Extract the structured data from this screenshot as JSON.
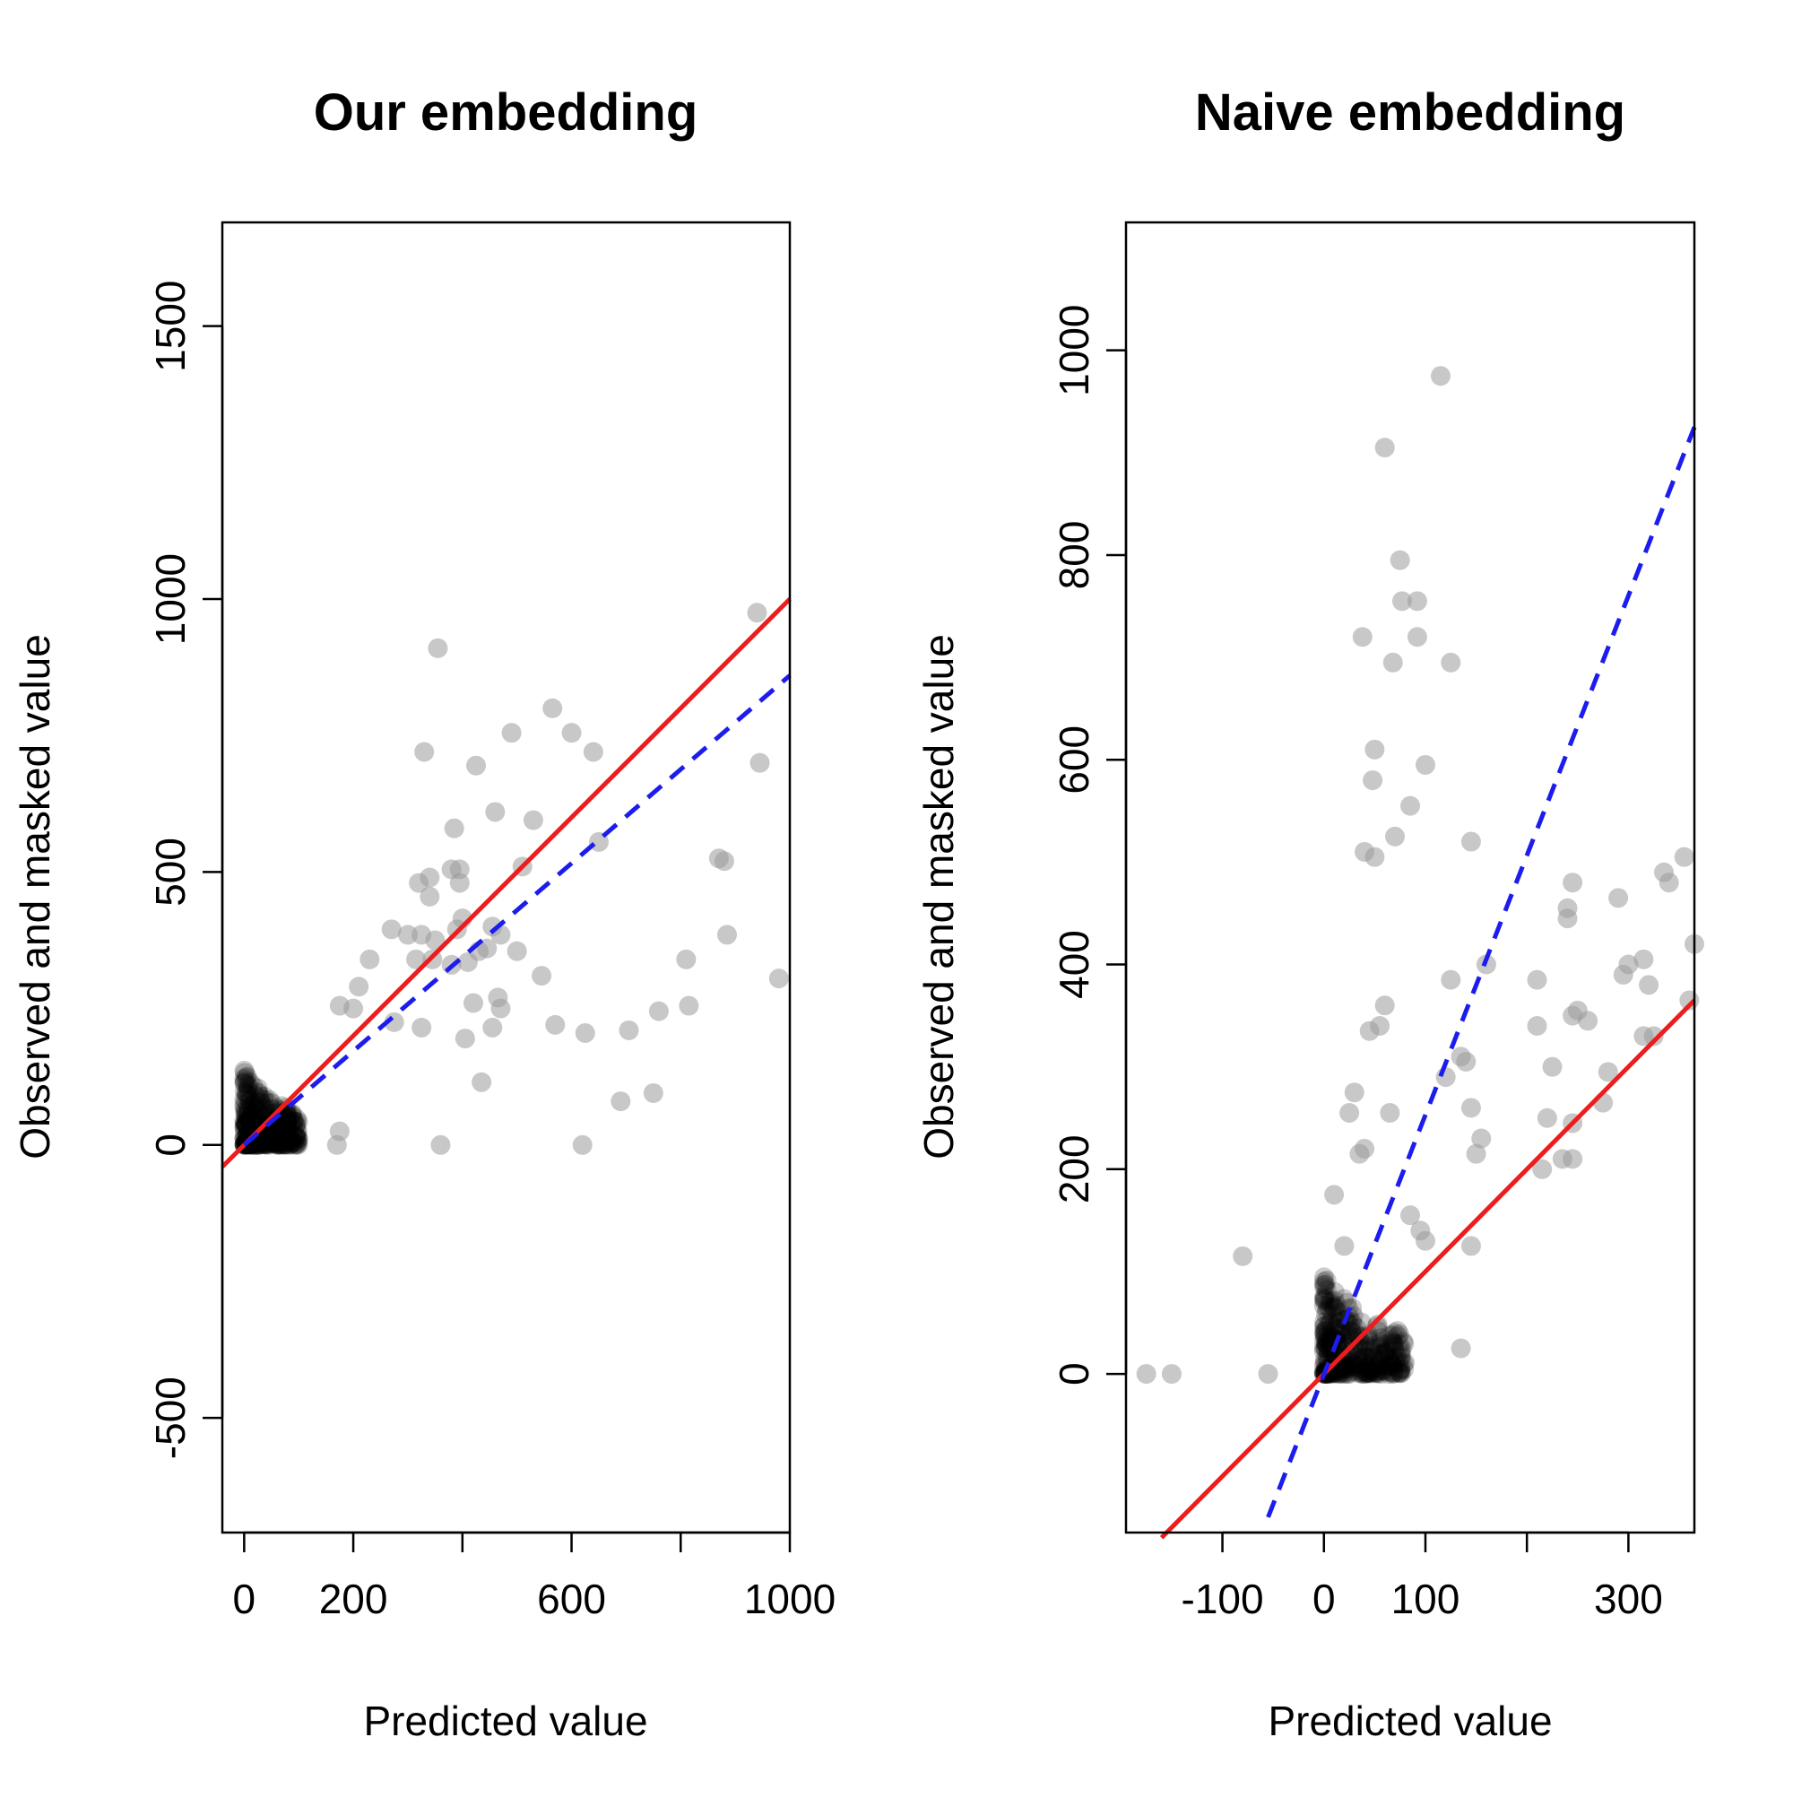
{
  "chart_data": [
    {
      "type": "scatter",
      "title": "Our embedding",
      "xlabel": "Predicted value",
      "ylabel": "Observed and masked value",
      "xlim": [
        -40,
        1000
      ],
      "ylim": [
        -710,
        1690
      ],
      "x_ticks": [
        0,
        200,
        400,
        600,
        800,
        1000
      ],
      "x_tick_labels": [
        "0",
        "200",
        "",
        "600",
        "",
        "1000"
      ],
      "y_ticks": [
        -500,
        0,
        500,
        1000,
        1500
      ],
      "y_tick_labels": [
        "-500",
        "0",
        "500",
        "1000",
        "1500"
      ],
      "point_color": "#9a9a9a",
      "cluster": {
        "x_range": [
          0,
          100
        ],
        "y_range": [
          0,
          140
        ],
        "count": 320
      },
      "points": [
        [
          940,
          975
        ],
        [
          355,
          910
        ],
        [
          565,
          800
        ],
        [
          490,
          755
        ],
        [
          600,
          755
        ],
        [
          640,
          720
        ],
        [
          330,
          720
        ],
        [
          425,
          695
        ],
        [
          945,
          700
        ],
        [
          385,
          580
        ],
        [
          460,
          610
        ],
        [
          530,
          595
        ],
        [
          650,
          555
        ],
        [
          380,
          505
        ],
        [
          395,
          505
        ],
        [
          395,
          480
        ],
        [
          510,
          510
        ],
        [
          340,
          490
        ],
        [
          320,
          480
        ],
        [
          340,
          455
        ],
        [
          870,
          525
        ],
        [
          880,
          520
        ],
        [
          400,
          415
        ],
        [
          455,
          400
        ],
        [
          445,
          360
        ],
        [
          430,
          355
        ],
        [
          390,
          395
        ],
        [
          270,
          395
        ],
        [
          300,
          385
        ],
        [
          325,
          385
        ],
        [
          350,
          375
        ],
        [
          470,
          385
        ],
        [
          380,
          330
        ],
        [
          410,
          335
        ],
        [
          345,
          340
        ],
        [
          500,
          355
        ],
        [
          315,
          340
        ],
        [
          885,
          385
        ],
        [
          810,
          340
        ],
        [
          230,
          340
        ],
        [
          210,
          290
        ],
        [
          465,
          270
        ],
        [
          470,
          250
        ],
        [
          420,
          260
        ],
        [
          175,
          255
        ],
        [
          200,
          250
        ],
        [
          545,
          310
        ],
        [
          275,
          225
        ],
        [
          325,
          215
        ],
        [
          455,
          215
        ],
        [
          570,
          220
        ],
        [
          625,
          205
        ],
        [
          705,
          210
        ],
        [
          405,
          195
        ],
        [
          815,
          255
        ],
        [
          760,
          245
        ],
        [
          980,
          305
        ],
        [
          435,
          115
        ],
        [
          750,
          95
        ],
        [
          690,
          80
        ],
        [
          360,
          0
        ],
        [
          620,
          0
        ],
        [
          170,
          0
        ],
        [
          175,
          25
        ]
      ],
      "series": [
        {
          "name": "",
          "style": "solid",
          "color": "#ee1c1c",
          "from": [
            -40,
            -40
          ],
          "to": [
            1000,
            1000
          ]
        },
        {
          "name": "",
          "style": "dashed",
          "color": "#1c1cee",
          "from": [
            0,
            0
          ],
          "to": [
            1000,
            860
          ]
        }
      ]
    },
    {
      "type": "scatter",
      "title": "Naive embedding",
      "xlabel": "Predicted value",
      "ylabel": "Observed and masked value",
      "xlim": [
        -195,
        365
      ],
      "ylim": [
        -155,
        1125
      ],
      "x_ticks": [
        -100,
        0,
        100,
        200,
        300
      ],
      "x_tick_labels": [
        "-100",
        "0",
        "100",
        "",
        "300"
      ],
      "y_ticks": [
        0,
        200,
        400,
        600,
        800,
        1000
      ],
      "y_tick_labels": [
        "0",
        "200",
        "400",
        "600",
        "800",
        "1000"
      ],
      "point_color": "#9a9a9a",
      "cluster": {
        "x_range": [
          0,
          80
        ],
        "y_range": [
          0,
          100
        ],
        "count": 320
      },
      "points": [
        [
          115,
          975
        ],
        [
          60,
          905
        ],
        [
          75,
          795
        ],
        [
          77,
          755
        ],
        [
          92,
          755
        ],
        [
          38,
          720
        ],
        [
          92,
          720
        ],
        [
          68,
          695
        ],
        [
          125,
          695
        ],
        [
          100,
          595
        ],
        [
          50,
          610
        ],
        [
          48,
          580
        ],
        [
          85,
          555
        ],
        [
          70,
          525
        ],
        [
          145,
          520
        ],
        [
          40,
          510
        ],
        [
          50,
          505
        ],
        [
          355,
          505
        ],
        [
          335,
          490
        ],
        [
          340,
          480
        ],
        [
          245,
          480
        ],
        [
          240,
          455
        ],
        [
          240,
          445
        ],
        [
          290,
          465
        ],
        [
          365,
          420
        ],
        [
          160,
          400
        ],
        [
          315,
          405
        ],
        [
          300,
          400
        ],
        [
          295,
          390
        ],
        [
          320,
          380
        ],
        [
          360,
          365
        ],
        [
          125,
          385
        ],
        [
          210,
          385
        ],
        [
          60,
          360
        ],
        [
          245,
          350
        ],
        [
          260,
          345
        ],
        [
          250,
          355
        ],
        [
          55,
          340
        ],
        [
          45,
          335
        ],
        [
          210,
          340
        ],
        [
          315,
          330
        ],
        [
          325,
          330
        ],
        [
          135,
          310
        ],
        [
          140,
          305
        ],
        [
          280,
          295
        ],
        [
          225,
          300
        ],
        [
          120,
          290
        ],
        [
          30,
          275
        ],
        [
          25,
          255
        ],
        [
          65,
          255
        ],
        [
          145,
          260
        ],
        [
          220,
          250
        ],
        [
          275,
          265
        ],
        [
          245,
          245
        ],
        [
          155,
          230
        ],
        [
          150,
          215
        ],
        [
          35,
          215
        ],
        [
          40,
          220
        ],
        [
          245,
          210
        ],
        [
          215,
          200
        ],
        [
          235,
          210
        ],
        [
          10,
          175
        ],
        [
          85,
          155
        ],
        [
          95,
          140
        ],
        [
          100,
          130
        ],
        [
          20,
          125
        ],
        [
          145,
          125
        ],
        [
          -80,
          115
        ],
        [
          135,
          25
        ],
        [
          -175,
          0
        ],
        [
          -150,
          0
        ],
        [
          -55,
          0
        ]
      ],
      "series": [
        {
          "name": "",
          "style": "solid",
          "color": "#ee1c1c",
          "from": [
            -160,
            -160
          ],
          "to": [
            365,
            365
          ]
        },
        {
          "name": "",
          "style": "dashed",
          "color": "#1c1cee",
          "from": [
            -55,
            -140
          ],
          "to": [
            365,
            925
          ]
        }
      ]
    }
  ]
}
